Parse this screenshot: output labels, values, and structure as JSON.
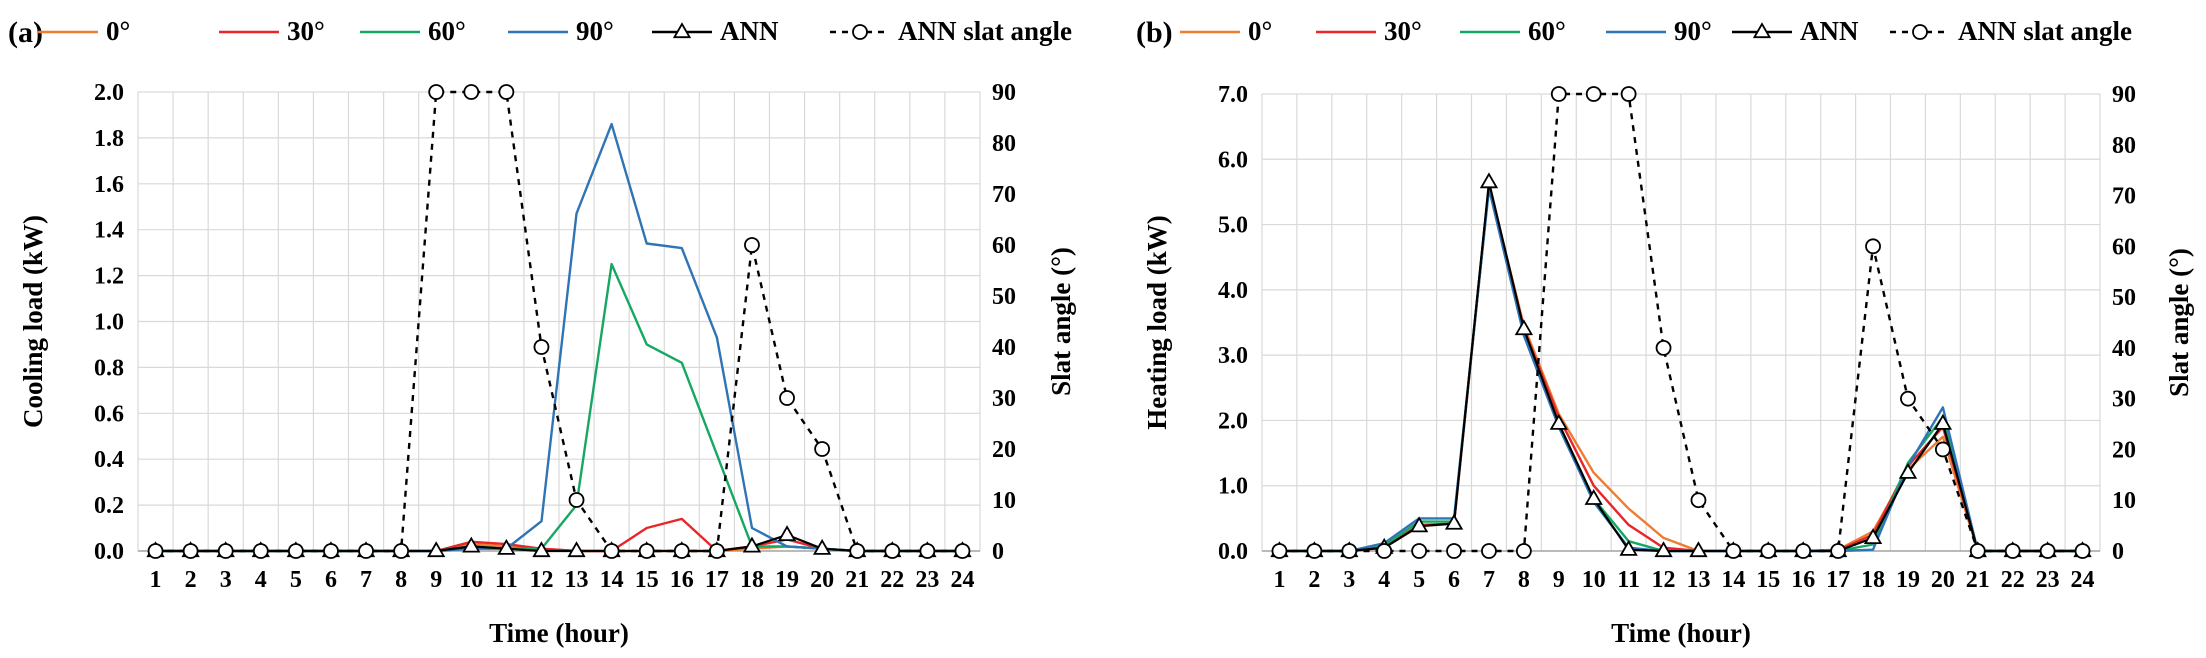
{
  "chart_data": [
    {
      "type": "line",
      "panel_label": "(a)",
      "xlabel": "Time (hour)",
      "ylabel": "Cooling load (kW)",
      "y2label": "Slat angle (°)",
      "x": [
        1,
        2,
        3,
        4,
        5,
        6,
        7,
        8,
        9,
        10,
        11,
        12,
        13,
        14,
        15,
        16,
        17,
        18,
        19,
        20,
        21,
        22,
        23,
        24
      ],
      "ylim": [
        0,
        2.0
      ],
      "y_ticks": [
        "0.0",
        "0.2",
        "0.4",
        "0.6",
        "0.8",
        "1.0",
        "1.2",
        "1.4",
        "1.6",
        "1.8",
        "2.0"
      ],
      "y2lim": [
        0,
        90
      ],
      "y2_ticks": [
        "0",
        "10",
        "20",
        "30",
        "40",
        "50",
        "60",
        "70",
        "80",
        "90"
      ],
      "grid": true,
      "legend_position": "top",
      "series": [
        {
          "name": "0°",
          "color": "#ED7D31",
          "axis": "left",
          "marker": "none",
          "dash": "solid",
          "values": [
            0,
            0,
            0,
            0,
            0,
            0,
            0,
            0,
            0,
            0.03,
            0.02,
            0.01,
            0,
            0,
            0,
            0,
            0,
            0.01,
            0.02,
            0.01,
            0,
            0,
            0,
            0
          ]
        },
        {
          "name": "30°",
          "color": "#E8262A",
          "axis": "left",
          "marker": "none",
          "dash": "solid",
          "values": [
            0,
            0,
            0,
            0,
            0,
            0,
            0,
            0,
            0,
            0.04,
            0.03,
            0.01,
            0,
            0,
            0.1,
            0.14,
            0,
            0.02,
            0.05,
            0.01,
            0,
            0,
            0,
            0
          ]
        },
        {
          "name": "60°",
          "color": "#16A862",
          "axis": "left",
          "marker": "none",
          "dash": "solid",
          "values": [
            0,
            0,
            0,
            0,
            0,
            0,
            0,
            0,
            0,
            0.02,
            0.01,
            0.01,
            0.2,
            1.25,
            0.9,
            0.82,
            0.42,
            0.02,
            0.02,
            0.01,
            0,
            0,
            0,
            0
          ]
        },
        {
          "name": "90°",
          "color": "#2F75B5",
          "axis": "left",
          "marker": "none",
          "dash": "solid",
          "values": [
            0,
            0,
            0,
            0,
            0,
            0,
            0,
            0,
            0,
            0.01,
            0.01,
            0.13,
            1.47,
            1.86,
            1.34,
            1.32,
            0.93,
            0.1,
            0.02,
            0.01,
            0,
            0,
            0,
            0
          ]
        },
        {
          "name": "ANN",
          "color": "#000000",
          "axis": "left",
          "marker": "triangle",
          "dash": "solid",
          "values": [
            0,
            0,
            0,
            0,
            0,
            0,
            0,
            0,
            0,
            0.02,
            0.01,
            0,
            0,
            0,
            0,
            0,
            0,
            0.02,
            0.07,
            0.01,
            0,
            0,
            0,
            0
          ]
        },
        {
          "name": "ANN slat angle",
          "color": "#000000",
          "axis": "right",
          "marker": "circle",
          "dash": "dashed",
          "values": [
            0,
            0,
            0,
            0,
            0,
            0,
            0,
            0,
            90,
            90,
            90,
            40,
            10,
            0,
            0,
            0,
            0,
            60,
            30,
            20,
            0,
            0,
            0,
            0
          ]
        }
      ]
    },
    {
      "type": "line",
      "panel_label": "(b)",
      "xlabel": "Time (hour)",
      "ylabel": "Heating load (kW)",
      "y2label": "Slat angle (°)",
      "x": [
        1,
        2,
        3,
        4,
        5,
        6,
        7,
        8,
        9,
        10,
        11,
        12,
        13,
        14,
        15,
        16,
        17,
        18,
        19,
        20,
        21,
        22,
        23,
        24
      ],
      "ylim": [
        0,
        7.0
      ],
      "y_ticks": [
        "0.0",
        "1.0",
        "2.0",
        "3.0",
        "4.0",
        "5.0",
        "6.0",
        "7.0"
      ],
      "y2lim": [
        0,
        90
      ],
      "y2_ticks": [
        "0",
        "10",
        "20",
        "30",
        "40",
        "50",
        "60",
        "70",
        "80",
        "90"
      ],
      "grid": true,
      "legend_position": "top",
      "series": [
        {
          "name": "0°",
          "color": "#ED7D31",
          "axis": "left",
          "marker": "none",
          "dash": "solid",
          "values": [
            0,
            0,
            0,
            0.05,
            0.38,
            0.42,
            5.6,
            3.45,
            2.1,
            1.2,
            0.65,
            0.2,
            0,
            0,
            0,
            0,
            0.02,
            0.3,
            1.25,
            1.75,
            0,
            0,
            0,
            0
          ]
        },
        {
          "name": "30°",
          "color": "#E8262A",
          "axis": "left",
          "marker": "none",
          "dash": "solid",
          "values": [
            0,
            0,
            0,
            0.05,
            0.4,
            0.42,
            5.6,
            3.4,
            2.05,
            1.0,
            0.4,
            0.05,
            0,
            0,
            0,
            0,
            0.01,
            0.25,
            1.3,
            1.9,
            0,
            0,
            0,
            0
          ]
        },
        {
          "name": "60°",
          "color": "#16A862",
          "axis": "left",
          "marker": "none",
          "dash": "solid",
          "values": [
            0,
            0,
            0,
            0.08,
            0.45,
            0.45,
            5.6,
            3.35,
            1.95,
            0.8,
            0.15,
            0,
            0,
            0,
            0,
            0,
            0,
            0.1,
            1.35,
            2.05,
            0,
            0,
            0,
            0
          ]
        },
        {
          "name": "90°",
          "color": "#2F75B5",
          "axis": "left",
          "marker": "none",
          "dash": "solid",
          "values": [
            0,
            0,
            0,
            0.12,
            0.5,
            0.5,
            5.55,
            3.3,
            1.9,
            0.75,
            0.05,
            0,
            0,
            0,
            0,
            0,
            0,
            0.02,
            1.3,
            2.2,
            0,
            0,
            0,
            0
          ]
        },
        {
          "name": "ANN",
          "color": "#000000",
          "axis": "left",
          "marker": "triangle",
          "dash": "solid",
          "values": [
            0,
            0,
            0,
            0.05,
            0.38,
            0.42,
            5.65,
            3.4,
            1.95,
            0.8,
            0.02,
            0,
            0,
            0,
            0,
            0,
            0,
            0.2,
            1.2,
            1.95,
            0,
            0,
            0,
            0
          ]
        },
        {
          "name": "ANN slat angle",
          "color": "#000000",
          "axis": "right",
          "marker": "circle",
          "dash": "dashed",
          "values": [
            0,
            0,
            0,
            0,
            0,
            0,
            0,
            0,
            90,
            90,
            90,
            40,
            10,
            0,
            0,
            0,
            0,
            60,
            30,
            20,
            0,
            0,
            0,
            0
          ]
        }
      ]
    }
  ]
}
